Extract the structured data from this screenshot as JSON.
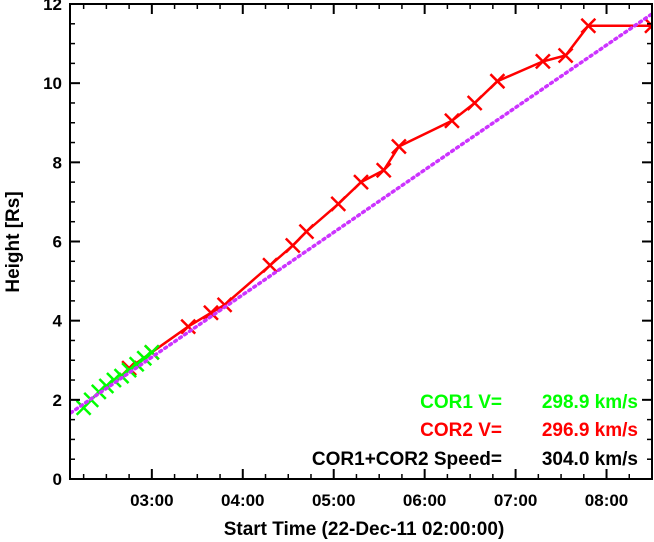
{
  "chart_data": {
    "type": "line",
    "title": "",
    "xlabel": "Start Time (22-Dec-11 02:00:00)",
    "ylabel": "Height [Rs]",
    "x_units": "minutes after 22-Dec-11 02:00:00",
    "xlim": [
      6,
      390
    ],
    "ylim": [
      0,
      12
    ],
    "x_ticks": [
      {
        "value": 60,
        "label": "03:00"
      },
      {
        "value": 120,
        "label": "04:00"
      },
      {
        "value": 180,
        "label": "05:00"
      },
      {
        "value": 240,
        "label": "06:00"
      },
      {
        "value": 300,
        "label": "07:00"
      },
      {
        "value": 360,
        "label": "08:00"
      }
    ],
    "y_ticks": [
      {
        "value": 0,
        "label": "0"
      },
      {
        "value": 2,
        "label": "2"
      },
      {
        "value": 4,
        "label": "4"
      },
      {
        "value": 6,
        "label": "6"
      },
      {
        "value": 8,
        "label": "8"
      },
      {
        "value": 10,
        "label": "10"
      },
      {
        "value": 12,
        "label": "12"
      }
    ],
    "series": [
      {
        "color": "#ff0000",
        "marker": "x",
        "line": "solid",
        "x": [
          45,
          60,
          84,
          99,
          108,
          138,
          153,
          162,
          183,
          198,
          213,
          223,
          258,
          273,
          288,
          318,
          333,
          348,
          390
        ],
        "y": [
          2.8,
          3.2,
          3.85,
          4.2,
          4.4,
          5.4,
          5.9,
          6.25,
          6.95,
          7.5,
          7.8,
          8.4,
          9.05,
          9.5,
          10.05,
          10.55,
          10.7,
          11.45,
          11.45
        ]
      },
      {
        "color": "#00ff00",
        "marker": "x",
        "line": "none",
        "x": [
          15,
          20,
          25,
          30,
          35,
          40,
          45,
          50,
          55,
          60
        ],
        "y": [
          1.8,
          2.0,
          2.2,
          2.35,
          2.5,
          2.6,
          2.75,
          2.9,
          3.05,
          3.2
        ]
      },
      {
        "color": "#cc33ff",
        "marker": "none",
        "line": "dotted",
        "x": [
          0,
          390
        ],
        "y": [
          1.5,
          11.75
        ]
      }
    ],
    "annotations": [
      {
        "label": "COR1 V=",
        "value": "298.9 km/s",
        "color": "#00ff00"
      },
      {
        "label": "COR2 V=",
        "value": "296.9 km/s",
        "color": "#ff0000"
      },
      {
        "label": "COR1+COR2 Speed=",
        "value": "304.0 km/s",
        "color": "#000000"
      }
    ],
    "grid": false,
    "legend": "bottom-right"
  }
}
